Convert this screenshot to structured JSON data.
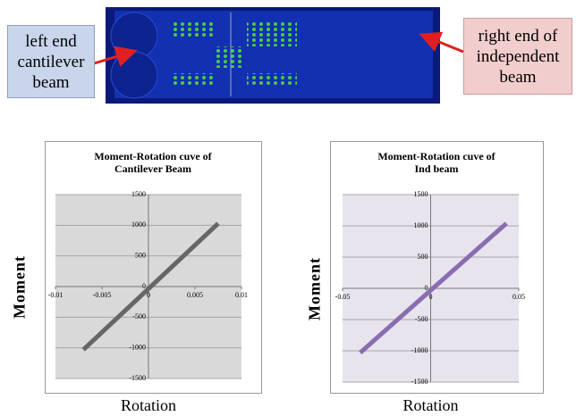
{
  "callouts": {
    "left": "left end cantilever beam",
    "right": "right end of independent beam"
  },
  "chart_data": [
    {
      "type": "line",
      "title": "Moment-Rotation cuve of Cantilever Beam",
      "x_label": "Rotation",
      "y_label": "Moment",
      "x": [
        -0.007,
        0.0075
      ],
      "values": [
        -1030,
        1030
      ],
      "color": "#666666",
      "xlim": [
        -0.01,
        0.01
      ],
      "xticks": [
        -0.01,
        -0.005,
        0,
        0.005,
        0.01
      ],
      "ylim": [
        -1500,
        1500
      ],
      "yticks": [
        -1500,
        -1000,
        -500,
        0,
        500,
        1000,
        1500
      ],
      "grid": true
    },
    {
      "type": "line",
      "title": "Moment-Rotation cuve of Ind beam",
      "x_label": "Rotation",
      "y_label": "Moment",
      "x": [
        -0.04,
        0.043
      ],
      "values": [
        -1030,
        1040
      ],
      "color": "#8a6db1",
      "xlim": [
        -0.05,
        0.05
      ],
      "xticks": [
        -0.05,
        0,
        0.05
      ],
      "ylim": [
        -1500,
        1500
      ],
      "yticks": [
        -1500,
        -1000,
        -500,
        0,
        500,
        1000,
        1500
      ],
      "grid": true
    }
  ]
}
